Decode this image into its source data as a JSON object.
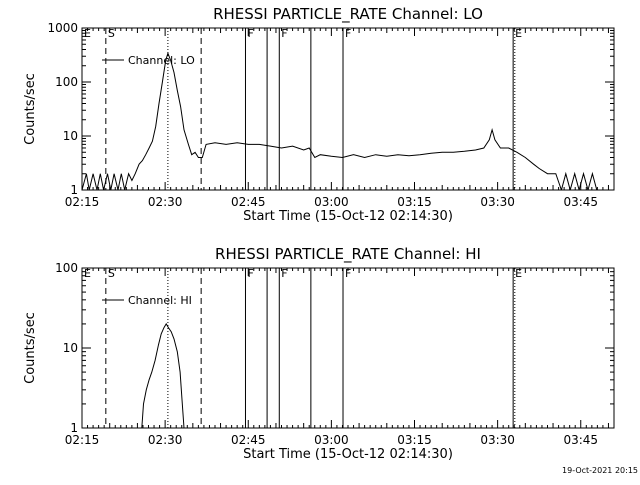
{
  "footer_timestamp": "19-Oct-2021 20:15",
  "chart_data": [
    {
      "type": "line",
      "title": "RHESSI PARTICLE_RATE Channel: LO",
      "xlabel": "Start Time (15-Oct-12 02:14:30)",
      "ylabel": "Counts/sec",
      "y_scale": "log",
      "ylim": [
        1,
        1000
      ],
      "xlim_minutes": [
        0,
        96
      ],
      "x_ticks": [
        {
          "label": "02:15",
          "minute": 0
        },
        {
          "label": "02:30",
          "minute": 15
        },
        {
          "label": "02:45",
          "minute": 30
        },
        {
          "label": "03:00",
          "minute": 45
        },
        {
          "label": "03:15",
          "minute": 60
        },
        {
          "label": "03:30",
          "minute": 75
        },
        {
          "label": "03:45",
          "minute": 90
        }
      ],
      "y_ticks": [
        {
          "label": "1",
          "value": 1
        },
        {
          "label": "10",
          "value": 10
        },
        {
          "label": "100",
          "value": 100
        },
        {
          "label": "1000",
          "value": 1000
        }
      ],
      "legend": "Channel: LO",
      "legend_position": "top-left",
      "markers": [
        {
          "label": "E",
          "minute": 0,
          "style": "none"
        },
        {
          "label": "S",
          "minute": 4.3,
          "style": "dashed"
        },
        {
          "label": "",
          "minute": 15.5,
          "style": "dotted"
        },
        {
          "label": "",
          "minute": 21.5,
          "style": "dashed"
        },
        {
          "label": "F",
          "minute": 29.5,
          "style": "solid"
        },
        {
          "label": "",
          "minute": 33.4,
          "style": "solid"
        },
        {
          "label": "F",
          "minute": 35.6,
          "style": "solid"
        },
        {
          "label": "",
          "minute": 41.3,
          "style": "solid"
        },
        {
          "label": "F",
          "minute": 47.1,
          "style": "solid"
        },
        {
          "label": "E",
          "minute": 77.8,
          "style": "solid"
        },
        {
          "label": "",
          "minute": 78.1,
          "style": "dotted"
        },
        {
          "label": "",
          "minute": 96.0,
          "style": "dotted"
        }
      ],
      "series": [
        {
          "name": "Channel: LO",
          "points": [
            [
              0,
              1
            ],
            [
              0.8,
              2
            ],
            [
              1.3,
              1
            ],
            [
              2,
              2
            ],
            [
              2.7,
              1
            ],
            [
              3.3,
              2
            ],
            [
              3.9,
              1
            ],
            [
              4.6,
              2
            ],
            [
              5.2,
              1
            ],
            [
              5.8,
              2
            ],
            [
              6.5,
              1
            ],
            [
              7.1,
              2
            ],
            [
              7.7,
              1
            ],
            [
              8.4,
              2
            ],
            [
              9,
              1.5
            ],
            [
              9.6,
              2
            ],
            [
              10.3,
              3
            ],
            [
              10.9,
              3.5
            ],
            [
              11.5,
              4.5
            ],
            [
              12.1,
              6
            ],
            [
              12.7,
              8
            ],
            [
              13.3,
              15
            ],
            [
              13.9,
              40
            ],
            [
              14.5,
              100
            ],
            [
              15.1,
              250
            ],
            [
              15.5,
              340
            ],
            [
              16,
              250
            ],
            [
              16.6,
              150
            ],
            [
              17.2,
              70
            ],
            [
              17.8,
              35
            ],
            [
              18.4,
              13
            ],
            [
              19.2,
              7
            ],
            [
              19.8,
              4.5
            ],
            [
              20.4,
              5
            ],
            [
              21,
              4
            ],
            [
              21.7,
              4
            ],
            [
              22.4,
              7
            ],
            [
              24,
              7.5
            ],
            [
              26,
              7
            ],
            [
              28,
              7.5
            ],
            [
              30,
              7
            ],
            [
              32,
              7
            ],
            [
              34,
              6.5
            ],
            [
              36,
              6
            ],
            [
              38,
              6.5
            ],
            [
              40,
              5.5
            ],
            [
              41,
              6
            ],
            [
              42,
              4
            ],
            [
              43,
              4.5
            ],
            [
              45,
              4.2
            ],
            [
              47,
              4
            ],
            [
              49,
              4.5
            ],
            [
              51,
              4
            ],
            [
              53,
              4.5
            ],
            [
              55,
              4.2
            ],
            [
              57,
              4.5
            ],
            [
              59,
              4.3
            ],
            [
              61,
              4.5
            ],
            [
              63,
              4.8
            ],
            [
              65,
              5
            ],
            [
              67,
              5
            ],
            [
              69,
              5.2
            ],
            [
              71,
              5.5
            ],
            [
              72.5,
              6
            ],
            [
              73.5,
              8.5
            ],
            [
              74,
              13
            ],
            [
              74.5,
              8.5
            ],
            [
              75.5,
              6
            ],
            [
              77,
              6
            ],
            [
              78.5,
              5
            ],
            [
              80,
              4
            ],
            [
              81.5,
              3
            ],
            [
              82.5,
              2.5
            ],
            [
              84,
              2
            ],
            [
              85.5,
              2
            ],
            [
              86.5,
              1
            ],
            [
              87.3,
              2
            ],
            [
              88.1,
              1
            ],
            [
              88.9,
              2
            ],
            [
              89.7,
              1
            ],
            [
              90.5,
              2
            ],
            [
              91.3,
              1
            ],
            [
              92.1,
              2
            ],
            [
              92.9,
              1
            ]
          ]
        }
      ]
    },
    {
      "type": "line",
      "title": "RHESSI PARTICLE_RATE Channel: HI",
      "xlabel": "Start Time (15-Oct-12 02:14:30)",
      "ylabel": "Counts/sec",
      "y_scale": "log",
      "ylim": [
        1,
        100
      ],
      "xlim_minutes": [
        0,
        96
      ],
      "x_ticks": [
        {
          "label": "02:15",
          "minute": 0
        },
        {
          "label": "02:30",
          "minute": 15
        },
        {
          "label": "02:45",
          "minute": 30
        },
        {
          "label": "03:00",
          "minute": 45
        },
        {
          "label": "03:15",
          "minute": 60
        },
        {
          "label": "03:30",
          "minute": 75
        },
        {
          "label": "03:45",
          "minute": 90
        }
      ],
      "y_ticks": [
        {
          "label": "1",
          "value": 1
        },
        {
          "label": "10",
          "value": 10
        },
        {
          "label": "100",
          "value": 100
        }
      ],
      "legend": "Channel: HI",
      "legend_position": "top-left",
      "markers": [
        {
          "label": "E",
          "minute": 0,
          "style": "none"
        },
        {
          "label": "S",
          "minute": 4.3,
          "style": "dashed"
        },
        {
          "label": "",
          "minute": 15.5,
          "style": "dotted"
        },
        {
          "label": "",
          "minute": 21.5,
          "style": "dashed"
        },
        {
          "label": "F",
          "minute": 29.5,
          "style": "solid"
        },
        {
          "label": "",
          "minute": 33.4,
          "style": "solid"
        },
        {
          "label": "F",
          "minute": 35.6,
          "style": "solid"
        },
        {
          "label": "",
          "minute": 41.3,
          "style": "solid"
        },
        {
          "label": "F",
          "minute": 47.1,
          "style": "solid"
        },
        {
          "label": "E",
          "minute": 77.8,
          "style": "solid"
        },
        {
          "label": "",
          "minute": 78.1,
          "style": "dotted"
        },
        {
          "label": "",
          "minute": 96.0,
          "style": "dotted"
        }
      ],
      "series": [
        {
          "name": "Channel: HI",
          "points": [
            [
              10.8,
              1
            ],
            [
              11.1,
              2
            ],
            [
              11.6,
              3
            ],
            [
              12.1,
              4
            ],
            [
              12.6,
              5
            ],
            [
              13.2,
              7
            ],
            [
              13.8,
              11
            ],
            [
              14.3,
              15
            ],
            [
              14.8,
              18
            ],
            [
              15.2,
              20
            ],
            [
              15.6,
              18
            ],
            [
              16.1,
              16
            ],
            [
              16.6,
              13
            ],
            [
              17.2,
              9
            ],
            [
              17.7,
              5
            ],
            [
              18.1,
              2
            ],
            [
              18.4,
              1
            ]
          ]
        }
      ]
    }
  ]
}
